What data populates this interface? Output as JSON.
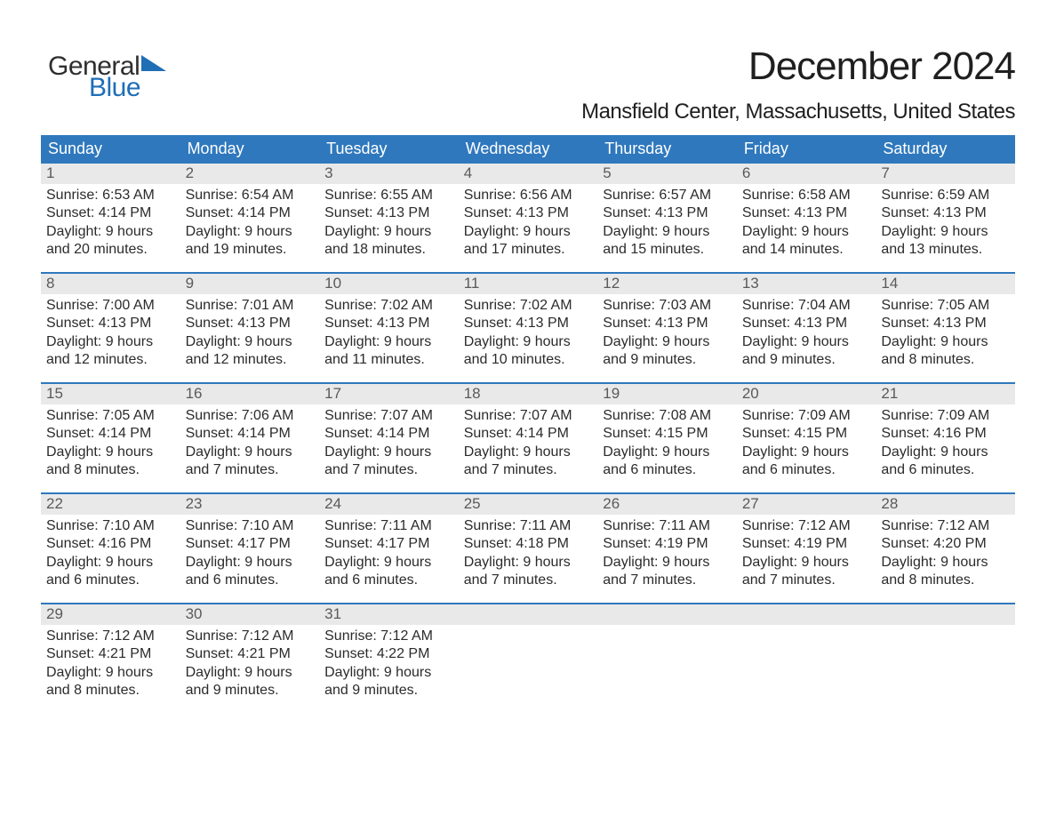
{
  "logo": {
    "text1": "General",
    "text2": "Blue",
    "flag_color": "#1f6eb6"
  },
  "title": "December 2024",
  "location": "Mansfield Center, Massachusetts, United States",
  "day_headers": [
    "Sunday",
    "Monday",
    "Tuesday",
    "Wednesday",
    "Thursday",
    "Friday",
    "Saturday"
  ],
  "colors": {
    "header_bg": "#2f78bd",
    "header_text": "#ffffff",
    "daynum_bg": "#e9e9e9",
    "daynum_text": "#5a5a5a",
    "body_text": "#2b2b2b",
    "title_text": "#1f1f1f",
    "logo_blue": "#1f6eb6",
    "logo_gray": "#2f2f2f",
    "divider": "#2f78bd",
    "background": "#ffffff"
  },
  "fonts": {
    "title_size_pt": 33,
    "location_size_pt": 18,
    "header_size_pt": 14,
    "daynum_size_pt": 13,
    "body_size_pt": 12
  },
  "weeks": [
    [
      {
        "n": "1",
        "sr": "Sunrise: 6:53 AM",
        "ss": "Sunset: 4:14 PM",
        "d1": "Daylight: 9 hours",
        "d2": "and 20 minutes."
      },
      {
        "n": "2",
        "sr": "Sunrise: 6:54 AM",
        "ss": "Sunset: 4:14 PM",
        "d1": "Daylight: 9 hours",
        "d2": "and 19 minutes."
      },
      {
        "n": "3",
        "sr": "Sunrise: 6:55 AM",
        "ss": "Sunset: 4:13 PM",
        "d1": "Daylight: 9 hours",
        "d2": "and 18 minutes."
      },
      {
        "n": "4",
        "sr": "Sunrise: 6:56 AM",
        "ss": "Sunset: 4:13 PM",
        "d1": "Daylight: 9 hours",
        "d2": "and 17 minutes."
      },
      {
        "n": "5",
        "sr": "Sunrise: 6:57 AM",
        "ss": "Sunset: 4:13 PM",
        "d1": "Daylight: 9 hours",
        "d2": "and 15 minutes."
      },
      {
        "n": "6",
        "sr": "Sunrise: 6:58 AM",
        "ss": "Sunset: 4:13 PM",
        "d1": "Daylight: 9 hours",
        "d2": "and 14 minutes."
      },
      {
        "n": "7",
        "sr": "Sunrise: 6:59 AM",
        "ss": "Sunset: 4:13 PM",
        "d1": "Daylight: 9 hours",
        "d2": "and 13 minutes."
      }
    ],
    [
      {
        "n": "8",
        "sr": "Sunrise: 7:00 AM",
        "ss": "Sunset: 4:13 PM",
        "d1": "Daylight: 9 hours",
        "d2": "and 12 minutes."
      },
      {
        "n": "9",
        "sr": "Sunrise: 7:01 AM",
        "ss": "Sunset: 4:13 PM",
        "d1": "Daylight: 9 hours",
        "d2": "and 12 minutes."
      },
      {
        "n": "10",
        "sr": "Sunrise: 7:02 AM",
        "ss": "Sunset: 4:13 PM",
        "d1": "Daylight: 9 hours",
        "d2": "and 11 minutes."
      },
      {
        "n": "11",
        "sr": "Sunrise: 7:02 AM",
        "ss": "Sunset: 4:13 PM",
        "d1": "Daylight: 9 hours",
        "d2": "and 10 minutes."
      },
      {
        "n": "12",
        "sr": "Sunrise: 7:03 AM",
        "ss": "Sunset: 4:13 PM",
        "d1": "Daylight: 9 hours",
        "d2": "and 9 minutes."
      },
      {
        "n": "13",
        "sr": "Sunrise: 7:04 AM",
        "ss": "Sunset: 4:13 PM",
        "d1": "Daylight: 9 hours",
        "d2": "and 9 minutes."
      },
      {
        "n": "14",
        "sr": "Sunrise: 7:05 AM",
        "ss": "Sunset: 4:13 PM",
        "d1": "Daylight: 9 hours",
        "d2": "and 8 minutes."
      }
    ],
    [
      {
        "n": "15",
        "sr": "Sunrise: 7:05 AM",
        "ss": "Sunset: 4:14 PM",
        "d1": "Daylight: 9 hours",
        "d2": "and 8 minutes."
      },
      {
        "n": "16",
        "sr": "Sunrise: 7:06 AM",
        "ss": "Sunset: 4:14 PM",
        "d1": "Daylight: 9 hours",
        "d2": "and 7 minutes."
      },
      {
        "n": "17",
        "sr": "Sunrise: 7:07 AM",
        "ss": "Sunset: 4:14 PM",
        "d1": "Daylight: 9 hours",
        "d2": "and 7 minutes."
      },
      {
        "n": "18",
        "sr": "Sunrise: 7:07 AM",
        "ss": "Sunset: 4:14 PM",
        "d1": "Daylight: 9 hours",
        "d2": "and 7 minutes."
      },
      {
        "n": "19",
        "sr": "Sunrise: 7:08 AM",
        "ss": "Sunset: 4:15 PM",
        "d1": "Daylight: 9 hours",
        "d2": "and 6 minutes."
      },
      {
        "n": "20",
        "sr": "Sunrise: 7:09 AM",
        "ss": "Sunset: 4:15 PM",
        "d1": "Daylight: 9 hours",
        "d2": "and 6 minutes."
      },
      {
        "n": "21",
        "sr": "Sunrise: 7:09 AM",
        "ss": "Sunset: 4:16 PM",
        "d1": "Daylight: 9 hours",
        "d2": "and 6 minutes."
      }
    ],
    [
      {
        "n": "22",
        "sr": "Sunrise: 7:10 AM",
        "ss": "Sunset: 4:16 PM",
        "d1": "Daylight: 9 hours",
        "d2": "and 6 minutes."
      },
      {
        "n": "23",
        "sr": "Sunrise: 7:10 AM",
        "ss": "Sunset: 4:17 PM",
        "d1": "Daylight: 9 hours",
        "d2": "and 6 minutes."
      },
      {
        "n": "24",
        "sr": "Sunrise: 7:11 AM",
        "ss": "Sunset: 4:17 PM",
        "d1": "Daylight: 9 hours",
        "d2": "and 6 minutes."
      },
      {
        "n": "25",
        "sr": "Sunrise: 7:11 AM",
        "ss": "Sunset: 4:18 PM",
        "d1": "Daylight: 9 hours",
        "d2": "and 7 minutes."
      },
      {
        "n": "26",
        "sr": "Sunrise: 7:11 AM",
        "ss": "Sunset: 4:19 PM",
        "d1": "Daylight: 9 hours",
        "d2": "and 7 minutes."
      },
      {
        "n": "27",
        "sr": "Sunrise: 7:12 AM",
        "ss": "Sunset: 4:19 PM",
        "d1": "Daylight: 9 hours",
        "d2": "and 7 minutes."
      },
      {
        "n": "28",
        "sr": "Sunrise: 7:12 AM",
        "ss": "Sunset: 4:20 PM",
        "d1": "Daylight: 9 hours",
        "d2": "and 8 minutes."
      }
    ],
    [
      {
        "n": "29",
        "sr": "Sunrise: 7:12 AM",
        "ss": "Sunset: 4:21 PM",
        "d1": "Daylight: 9 hours",
        "d2": "and 8 minutes."
      },
      {
        "n": "30",
        "sr": "Sunrise: 7:12 AM",
        "ss": "Sunset: 4:21 PM",
        "d1": "Daylight: 9 hours",
        "d2": "and 9 minutes."
      },
      {
        "n": "31",
        "sr": "Sunrise: 7:12 AM",
        "ss": "Sunset: 4:22 PM",
        "d1": "Daylight: 9 hours",
        "d2": "and 9 minutes."
      },
      null,
      null,
      null,
      null
    ]
  ]
}
